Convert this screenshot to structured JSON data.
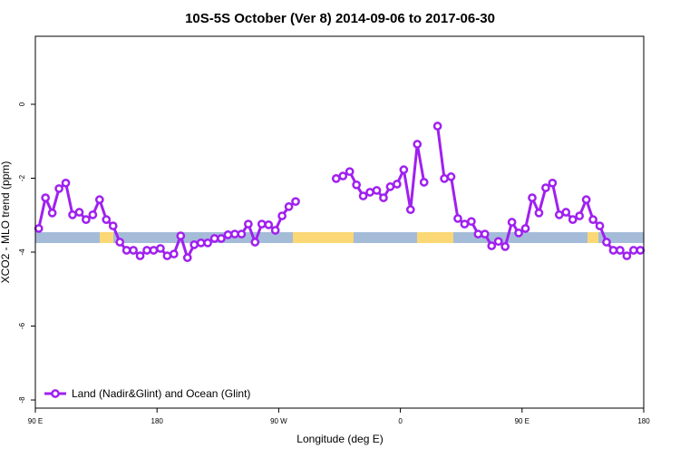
{
  "chart_data": {
    "type": "line",
    "title": "10S-5S October (Ver 8)   2014-09-06 to 2017-06-30",
    "x_label": "Longitude (deg E)",
    "y_label": "XCO2 - MLO trend (ppm)",
    "legend": "bottom-left",
    "xlim": [
      90,
      540
    ],
    "ylim": [
      -8.22,
      1.84
    ],
    "xticks": [
      {
        "value": 90,
        "label": "90 E"
      },
      180,
      {
        "value": 270,
        "label": "90 W"
      },
      {
        "value": 360,
        "label": "0"
      },
      {
        "value": 450,
        "label": "90 E"
      },
      {
        "value": 540,
        "label": "180"
      }
    ],
    "yticks": [
      0,
      -2,
      -4,
      -6,
      -8
    ],
    "x": [
      92.5,
      97.5,
      102.5,
      107.5,
      112.5,
      117.5,
      122.5,
      127.5,
      132.5,
      137.5,
      142.5,
      147.5,
      152.5,
      157.5,
      162.5,
      167.5,
      172.5,
      177.5,
      182.5,
      187.5,
      192.5,
      197.5,
      202.5,
      207.5,
      212.5,
      217.5,
      222.5,
      227.5,
      232.5,
      237.5,
      242.5,
      247.5,
      252.5,
      257.5,
      262.5,
      267.5,
      272.5,
      277.5,
      282.5,
      287.5,
      292.5,
      297.5,
      302.5,
      307.5,
      312.5,
      317.5,
      322.5,
      327.5,
      332.5,
      337.5,
      342.5,
      347.5,
      352.5,
      357.5,
      362.5,
      367.5,
      372.5,
      377.5,
      382.5,
      387.5,
      392.5,
      397.5,
      402.5,
      407.5,
      412.5,
      417.5,
      422.5,
      427.5,
      432.5,
      437.5,
      442.5,
      447.5,
      452.5,
      457.5,
      462.5,
      467.5,
      472.5,
      477.5,
      482.5,
      487.5,
      492.5,
      497.5,
      502.5,
      507.5,
      512.5,
      517.5,
      522.5,
      527.5,
      532.5,
      537.5
    ],
    "series": [
      {
        "name": "Land (Nadir&Glint) and Ocean (Glint)",
        "color": "#a020f0",
        "values": [
          -3.36,
          -2.53,
          -2.94,
          -2.28,
          -2.13,
          -2.99,
          -2.92,
          -3.12,
          -2.99,
          -2.58,
          -3.12,
          -3.29,
          -3.73,
          -3.95,
          -3.95,
          -4.1,
          -3.95,
          -3.95,
          -3.9,
          -4.1,
          -4.05,
          -3.56,
          -4.15,
          -3.8,
          -3.75,
          -3.75,
          -3.63,
          -3.63,
          -3.53,
          -3.51,
          -3.51,
          -3.24,
          -3.73,
          -3.24,
          -3.26,
          -3.41,
          -3.02,
          -2.77,
          -2.63,
          null,
          null,
          null,
          null,
          null,
          -2.01,
          -1.94,
          -1.82,
          -2.18,
          -2.48,
          -2.38,
          -2.33,
          -2.53,
          -2.23,
          -2.16,
          -1.77,
          -2.85,
          -1.08,
          -2.11,
          null,
          -0.59,
          -2.01,
          -1.96,
          -3.09,
          -3.24,
          -3.17,
          -3.51,
          -3.51,
          -3.83,
          -3.71,
          -3.85,
          -3.19,
          -3.48,
          -3.36,
          -2.53,
          -2.94,
          -2.26,
          -2.13,
          -2.99,
          -2.92,
          -3.12,
          -3.02,
          -2.58,
          -3.12,
          -3.29,
          -3.73,
          -3.95,
          -3.95,
          -4.1,
          -3.95,
          -3.95
        ]
      }
    ]
  }
}
